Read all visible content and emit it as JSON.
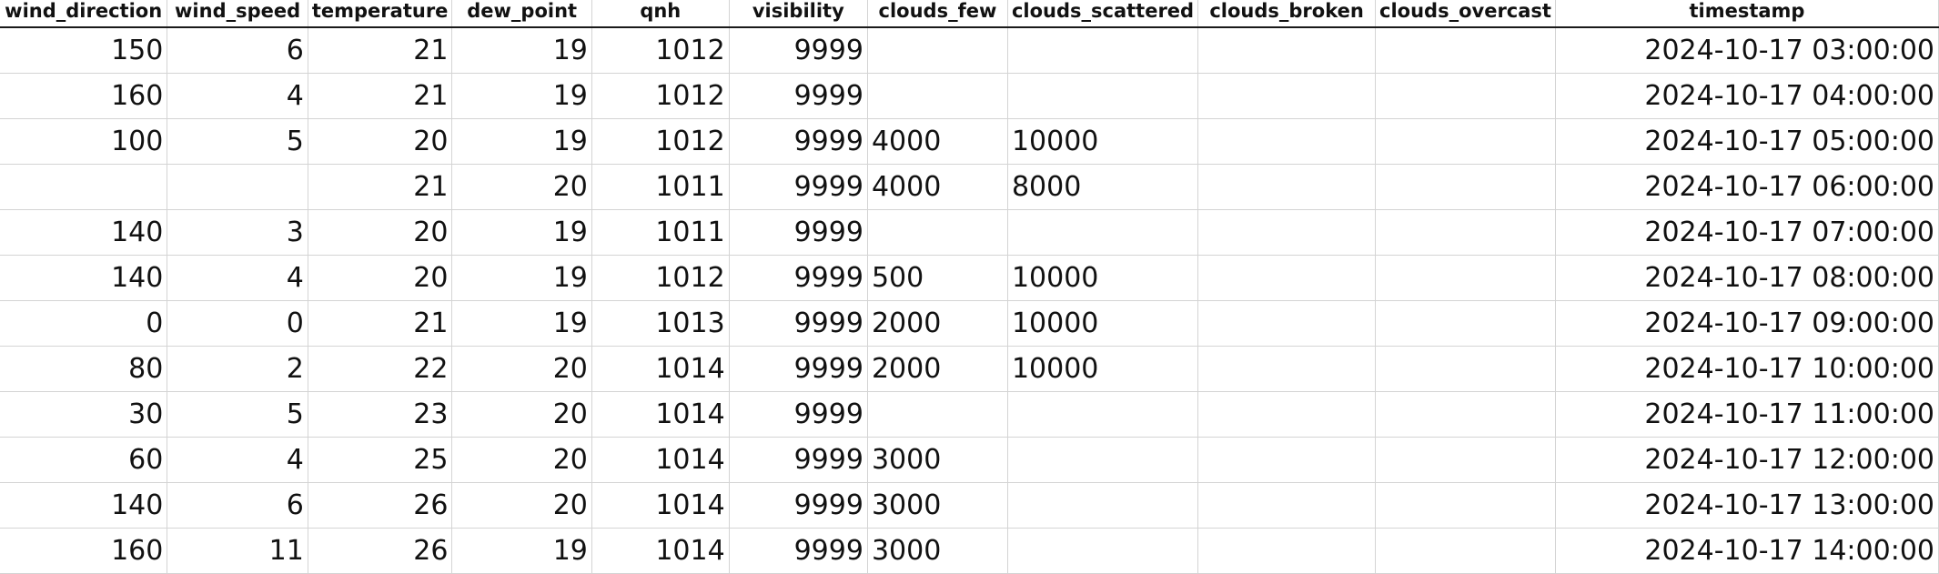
{
  "sheet": {
    "columns": [
      "wind_direction",
      "wind_speed",
      "temperature",
      "dew_point",
      "qnh",
      "visibility",
      "clouds_few",
      "clouds_scattered",
      "clouds_broken",
      "clouds_overcast",
      "timestamp"
    ],
    "rows": [
      [
        "150",
        "6",
        "21",
        "19",
        "1012",
        "9999",
        "",
        "",
        "",
        "",
        "2024-10-17 03:00:00"
      ],
      [
        "160",
        "4",
        "21",
        "19",
        "1012",
        "9999",
        "",
        "",
        "",
        "",
        "2024-10-17 04:00:00"
      ],
      [
        "100",
        "5",
        "20",
        "19",
        "1012",
        "9999",
        "4000",
        "10000",
        "",
        "",
        "2024-10-17 05:00:00"
      ],
      [
        "",
        "",
        "21",
        "20",
        "1011",
        "9999",
        "4000",
        "8000",
        "",
        "",
        "2024-10-17 06:00:00"
      ],
      [
        "140",
        "3",
        "20",
        "19",
        "1011",
        "9999",
        "",
        "",
        "",
        "",
        "2024-10-17 07:00:00"
      ],
      [
        "140",
        "4",
        "20",
        "19",
        "1012",
        "9999",
        "500",
        "10000",
        "",
        "",
        "2024-10-17 08:00:00"
      ],
      [
        "0",
        "0",
        "21",
        "19",
        "1013",
        "9999",
        "2000",
        "10000",
        "",
        "",
        "2024-10-17 09:00:00"
      ],
      [
        "80",
        "2",
        "22",
        "20",
        "1014",
        "9999",
        "2000",
        "10000",
        "",
        "",
        "2024-10-17 10:00:00"
      ],
      [
        "30",
        "5",
        "23",
        "20",
        "1014",
        "9999",
        "",
        "",
        "",
        "",
        "2024-10-17 11:00:00"
      ],
      [
        "60",
        "4",
        "25",
        "20",
        "1014",
        "9999",
        "3000",
        "",
        "",
        "",
        "2024-10-17 12:00:00"
      ],
      [
        "140",
        "6",
        "26",
        "20",
        "1014",
        "9999",
        "3000",
        "",
        "",
        "",
        "2024-10-17 13:00:00"
      ],
      [
        "160",
        "11",
        "26",
        "19",
        "1014",
        "9999",
        "3000",
        "",
        "",
        "",
        "2024-10-17 14:00:00"
      ]
    ]
  }
}
